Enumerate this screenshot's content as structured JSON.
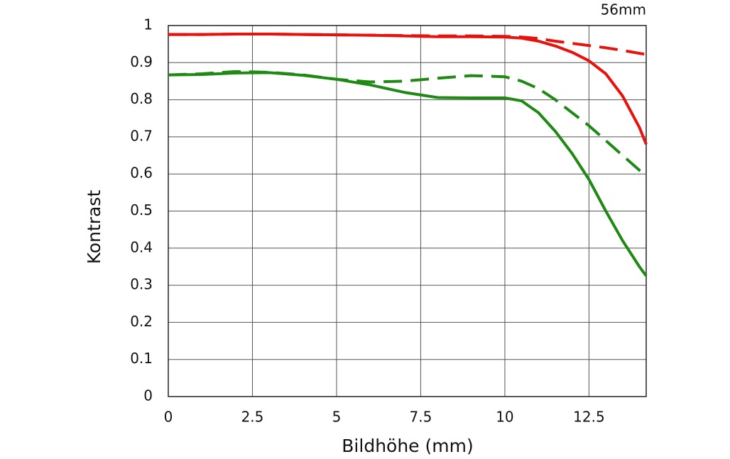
{
  "chart_data": {
    "type": "line",
    "title": "56mm",
    "x_label": "Bildhöhe (mm)",
    "y_label": "Kontrast",
    "x": [
      0,
      1,
      2,
      3,
      4,
      5,
      6,
      7,
      8,
      9,
      10,
      10.5,
      11,
      11.5,
      12,
      12.5,
      13,
      13.5,
      14,
      14.2
    ],
    "series": [
      {
        "color": "#e8120c",
        "dash": false,
        "values": [
          0.976,
          0.976,
          0.977,
          0.977,
          0.976,
          0.975,
          0.974,
          0.972,
          0.97,
          0.97,
          0.969,
          0.966,
          0.958,
          0.945,
          0.928,
          0.905,
          0.87,
          0.81,
          0.725,
          0.68
        ]
      },
      {
        "color": "#e8120c",
        "dash": true,
        "values": [
          0.976,
          0.976,
          0.977,
          0.977,
          0.976,
          0.975,
          0.974,
          0.973,
          0.972,
          0.972,
          0.971,
          0.969,
          0.965,
          0.958,
          0.952,
          0.946,
          0.94,
          0.933,
          0.925,
          0.922
        ]
      },
      {
        "color": "#1e8a14",
        "dash": false,
        "values": [
          0.867,
          0.868,
          0.872,
          0.873,
          0.866,
          0.855,
          0.84,
          0.82,
          0.806,
          0.805,
          0.805,
          0.797,
          0.765,
          0.715,
          0.655,
          0.585,
          0.5,
          0.42,
          0.35,
          0.325
        ]
      },
      {
        "color": "#1e8a14",
        "dash": true,
        "values": [
          0.867,
          0.87,
          0.876,
          0.874,
          0.867,
          0.855,
          0.848,
          0.85,
          0.858,
          0.865,
          0.862,
          0.85,
          0.83,
          0.8,
          0.765,
          0.73,
          0.69,
          0.65,
          0.61,
          0.597
        ]
      }
    ],
    "xlim": [
      0,
      14.2
    ],
    "ylim": [
      0,
      1
    ],
    "xticks": [
      0,
      2.5,
      5,
      7.5,
      10,
      12.5
    ],
    "yticks": [
      0,
      0.1,
      0.2,
      0.3,
      0.4,
      0.5,
      0.6,
      0.7,
      0.8,
      0.9,
      1
    ],
    "grid": true
  }
}
